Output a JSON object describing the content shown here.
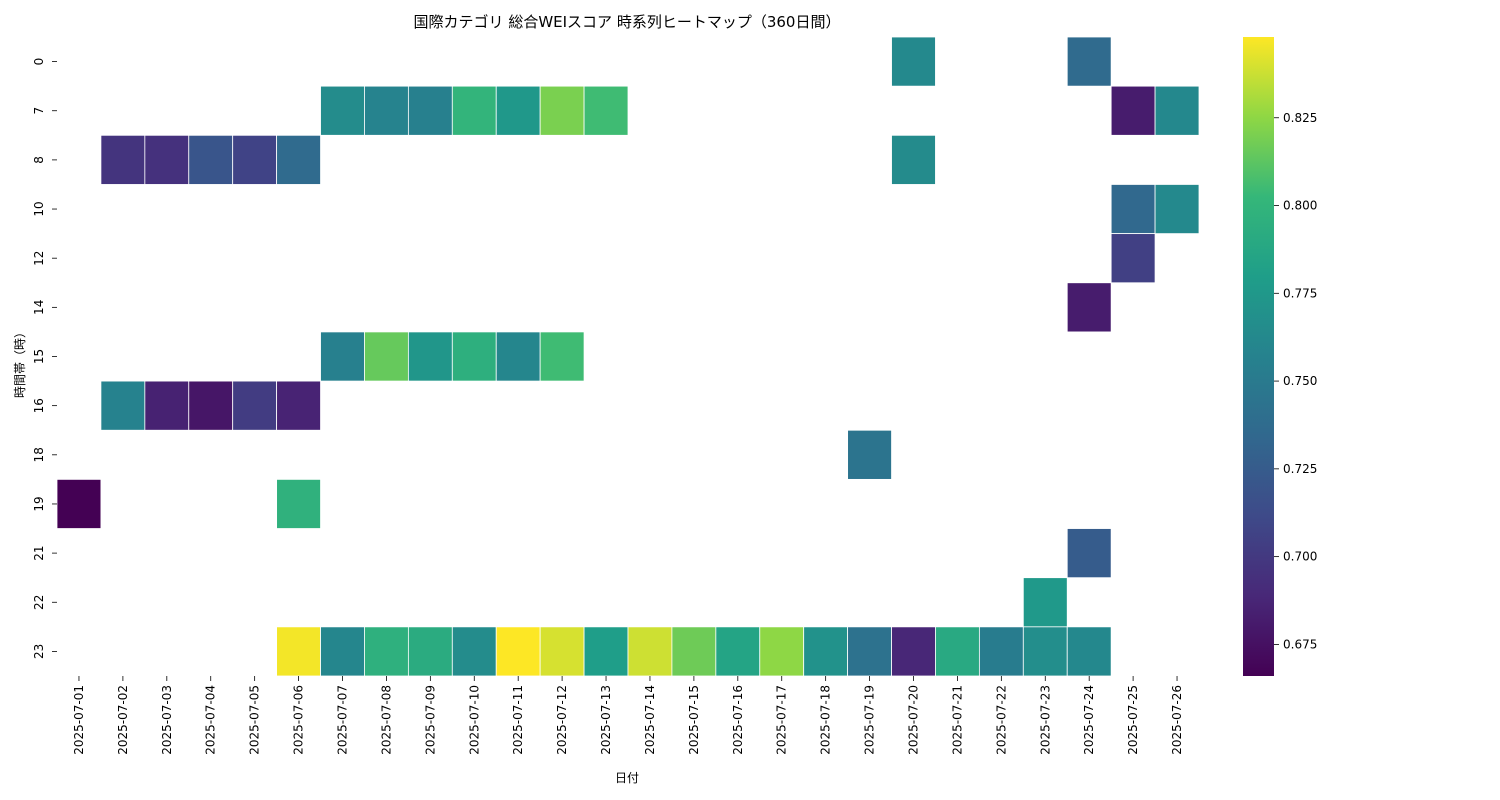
{
  "chart_data": {
    "type": "heatmap",
    "title": "国際カテゴリ 総合WEIスコア 時系列ヒートマップ（360日間）",
    "xlabel": "日付",
    "ylabel": "時間帯（時）",
    "x": [
      "2025-07-01",
      "2025-07-02",
      "2025-07-03",
      "2025-07-04",
      "2025-07-05",
      "2025-07-06",
      "2025-07-07",
      "2025-07-08",
      "2025-07-09",
      "2025-07-10",
      "2025-07-11",
      "2025-07-12",
      "2025-07-13",
      "2025-07-14",
      "2025-07-15",
      "2025-07-16",
      "2025-07-17",
      "2025-07-18",
      "2025-07-19",
      "2025-07-20",
      "2025-07-21",
      "2025-07-22",
      "2025-07-23",
      "2025-07-24",
      "2025-07-25",
      "2025-07-26"
    ],
    "y": [
      "0",
      "7",
      "8",
      "10",
      "12",
      "14",
      "15",
      "16",
      "18",
      "19",
      "21",
      "22",
      "23"
    ],
    "values": [
      [
        null,
        null,
        null,
        null,
        null,
        null,
        null,
        null,
        null,
        null,
        null,
        null,
        null,
        null,
        null,
        null,
        null,
        null,
        null,
        0.763,
        null,
        null,
        null,
        0.737,
        null,
        null
      ],
      [
        null,
        null,
        null,
        null,
        null,
        null,
        0.765,
        0.758,
        0.755,
        0.8,
        0.775,
        0.82,
        0.805,
        null,
        null,
        null,
        null,
        null,
        null,
        null,
        null,
        null,
        null,
        null,
        0.682,
        0.762
      ],
      [
        null,
        0.697,
        0.695,
        0.72,
        0.707,
        0.737,
        null,
        null,
        null,
        null,
        null,
        null,
        null,
        null,
        null,
        null,
        null,
        null,
        null,
        0.764,
        null,
        null,
        null,
        null,
        null,
        null
      ],
      [
        null,
        null,
        null,
        null,
        null,
        null,
        null,
        null,
        null,
        null,
        null,
        null,
        null,
        null,
        null,
        null,
        null,
        null,
        null,
        null,
        null,
        null,
        null,
        null,
        0.735,
        0.763
      ],
      [
        null,
        null,
        null,
        null,
        null,
        null,
        null,
        null,
        null,
        null,
        null,
        null,
        null,
        null,
        null,
        null,
        null,
        null,
        null,
        null,
        null,
        null,
        null,
        null,
        0.705,
        null
      ],
      [
        null,
        null,
        null,
        null,
        null,
        null,
        null,
        null,
        null,
        null,
        null,
        null,
        null,
        null,
        null,
        null,
        null,
        null,
        null,
        null,
        null,
        null,
        null,
        0.682,
        null,
        null
      ],
      [
        null,
        null,
        null,
        null,
        null,
        null,
        0.755,
        0.815,
        0.773,
        0.795,
        0.76,
        0.805,
        null,
        null,
        null,
        null,
        null,
        null,
        null,
        null,
        null,
        null,
        null,
        null,
        null,
        null
      ],
      [
        null,
        0.757,
        0.685,
        0.678,
        0.702,
        0.686,
        null,
        null,
        null,
        null,
        null,
        null,
        null,
        null,
        null,
        null,
        null,
        null,
        null,
        null,
        null,
        null,
        null,
        null,
        null,
        null
      ],
      [
        null,
        null,
        null,
        null,
        null,
        null,
        null,
        null,
        null,
        null,
        null,
        null,
        null,
        null,
        null,
        null,
        null,
        null,
        0.745,
        null,
        null,
        null,
        null,
        null,
        null,
        null
      ],
      [
        0.666,
        null,
        null,
        null,
        null,
        0.797,
        null,
        null,
        null,
        null,
        null,
        null,
        null,
        null,
        null,
        null,
        null,
        null,
        null,
        null,
        null,
        null,
        null,
        null,
        null,
        null
      ],
      [
        null,
        null,
        null,
        null,
        null,
        null,
        null,
        null,
        null,
        null,
        null,
        null,
        null,
        null,
        null,
        null,
        null,
        null,
        null,
        null,
        null,
        null,
        null,
        0.725,
        null,
        null
      ],
      [
        null,
        null,
        null,
        null,
        null,
        null,
        null,
        null,
        null,
        null,
        null,
        null,
        null,
        null,
        null,
        null,
        null,
        null,
        null,
        null,
        null,
        null,
        0.776,
        null,
        null,
        null
      ],
      [
        null,
        null,
        null,
        null,
        null,
        0.846,
        0.76,
        0.796,
        0.792,
        0.765,
        0.848,
        0.84,
        0.78,
        0.838,
        0.817,
        0.785,
        0.825,
        0.77,
        0.743,
        0.688,
        0.79,
        0.752,
        0.767,
        0.762,
        null,
        null
      ]
    ],
    "colormap": "viridis",
    "vmin": 0.666,
    "vmax": 0.848,
    "colorbar_ticks": [
      0.675,
      0.7,
      0.725,
      0.75,
      0.775,
      0.8,
      0.825
    ],
    "colorbar_labels": [
      "0.675",
      "0.700",
      "0.725",
      "0.750",
      "0.775",
      "0.800",
      "0.825"
    ],
    "grid": false,
    "legend": "colorbar right"
  }
}
